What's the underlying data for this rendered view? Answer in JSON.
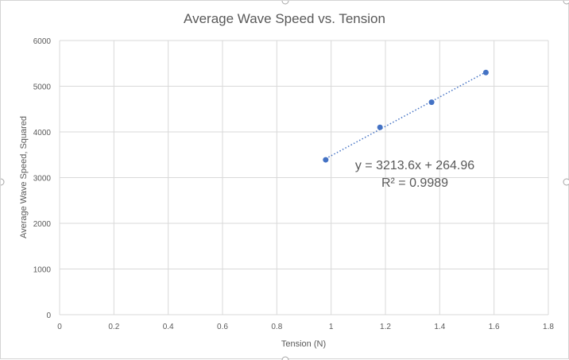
{
  "chart_data": {
    "type": "scatter",
    "title": "Average Wave Speed vs. Tension",
    "xlabel": "Tension (N)",
    "ylabel": "Average Wave Speed, Squared",
    "xlim": [
      0,
      1.8
    ],
    "ylim": [
      0,
      6000
    ],
    "x_ticks": [
      "0",
      "0.2",
      "0.4",
      "0.6",
      "0.8",
      "1",
      "1.2",
      "1.4",
      "1.6",
      "1.8"
    ],
    "y_ticks": [
      "0",
      "1000",
      "2000",
      "3000",
      "4000",
      "5000",
      "6000"
    ],
    "grid": true,
    "series": [
      {
        "x": [
          0.98,
          1.18,
          1.37,
          1.57
        ],
        "y": [
          3390,
          4100,
          4650,
          5300
        ],
        "color": "#4472C4"
      }
    ],
    "trendline": {
      "type": "linear",
      "slope": 3213.6,
      "intercept": 264.96,
      "equation_label": "y = 3213.6x + 264.96",
      "r2_label": "R² = 0.9989",
      "style": "dotted",
      "color": "#4472C4"
    }
  }
}
